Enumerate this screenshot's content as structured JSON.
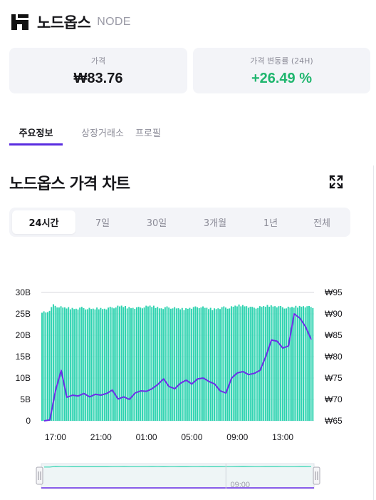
{
  "header": {
    "coin_name": "노드옵스",
    "coin_symbol": "NODE",
    "logo_icon": "nodeops-logo-icon"
  },
  "stats": {
    "price_label": "가격",
    "price_value": "₩83.76",
    "change_label": "가격 변동률 (24H)",
    "change_value": "+26.49 %",
    "change_color": "#1fb66e"
  },
  "tabs": [
    {
      "label": "주요정보",
      "active": true
    },
    {
      "label": "상장거래소",
      "active": false
    },
    {
      "label": "프로필",
      "active": false
    }
  ],
  "section": {
    "title": "노드옵스 가격 차트",
    "expand_icon": "fullscreen-icon"
  },
  "ranges": [
    {
      "label": "24시간",
      "active": true
    },
    {
      "label": "7일",
      "active": false
    },
    {
      "label": "30일",
      "active": false
    },
    {
      "label": "3개월",
      "active": false
    },
    {
      "label": "1년",
      "active": false
    },
    {
      "label": "전체",
      "active": false
    }
  ],
  "colors": {
    "accent": "#5a2de0",
    "volume_bar": "#2ed3b0",
    "price_line": "#6b2ee8",
    "positive": "#1fb66e"
  },
  "chart_data": {
    "type": "line",
    "title": "",
    "x": [
      "16:00",
      "16:30",
      "17:00",
      "17:30",
      "18:00",
      "18:30",
      "19:00",
      "19:30",
      "20:00",
      "20:30",
      "21:00",
      "21:30",
      "22:00",
      "22:30",
      "23:00",
      "23:30",
      "00:00",
      "00:30",
      "01:00",
      "01:30",
      "02:00",
      "02:30",
      "03:00",
      "03:30",
      "04:00",
      "04:30",
      "05:00",
      "05:30",
      "06:00",
      "06:30",
      "07:00",
      "07:30",
      "08:00",
      "08:30",
      "09:00",
      "09:30",
      "10:00",
      "10:30",
      "11:00",
      "11:30",
      "12:00",
      "12:30",
      "13:00",
      "13:30",
      "14:00",
      "14:30",
      "15:00",
      "15:30"
    ],
    "x_ticks": [
      "17:00",
      "21:00",
      "01:00",
      "05:00",
      "09:00",
      "13:00"
    ],
    "y_left_ticks": [
      "30B",
      "25B",
      "20B",
      "15B",
      "10B",
      "5B",
      "0"
    ],
    "y_left_range": [
      0,
      30
    ],
    "y_right_ticks": [
      "₩95",
      "₩90",
      "₩85",
      "₩80",
      "₩75",
      "₩70",
      "₩65"
    ],
    "y_right_range": [
      65,
      95
    ],
    "series": [
      {
        "role": "price",
        "axis": "right",
        "values": [
          65.0,
          65.2,
          72.0,
          76.8,
          70.5,
          71.0,
          70.8,
          71.4,
          70.6,
          71.2,
          71.0,
          71.4,
          72.2,
          70.1,
          70.6,
          70.0,
          71.5,
          72.0,
          71.9,
          72.5,
          73.5,
          74.8,
          73.0,
          72.5,
          73.8,
          74.5,
          73.6,
          74.8,
          75.0,
          74.2,
          73.6,
          72.0,
          71.5,
          75.0,
          76.2,
          76.5,
          75.8,
          76.1,
          76.8,
          80.0,
          83.9,
          83.6,
          82.0,
          82.5,
          90.0,
          89.0,
          87.0,
          84.0
        ]
      },
      {
        "role": "volume",
        "axis": "left",
        "values": [
          25.5,
          25.4,
          27.0,
          26.6,
          26.4,
          26.3,
          26.2,
          26.4,
          26.2,
          26.1,
          26.3,
          26.2,
          26.4,
          26.6,
          26.8,
          26.5,
          26.4,
          26.4,
          26.6,
          26.8,
          26.6,
          26.3,
          26.5,
          26.4,
          26.2,
          26.1,
          26.4,
          26.5,
          26.6,
          26.3,
          26.1,
          26.3,
          26.5,
          26.4,
          26.8,
          27.0,
          26.8,
          26.4,
          26.5,
          26.7,
          26.9,
          26.8,
          26.6,
          26.4,
          26.5,
          26.7,
          26.8,
          26.6
        ]
      }
    ],
    "grid": "horizontal",
    "navigator_label": "09:00"
  }
}
